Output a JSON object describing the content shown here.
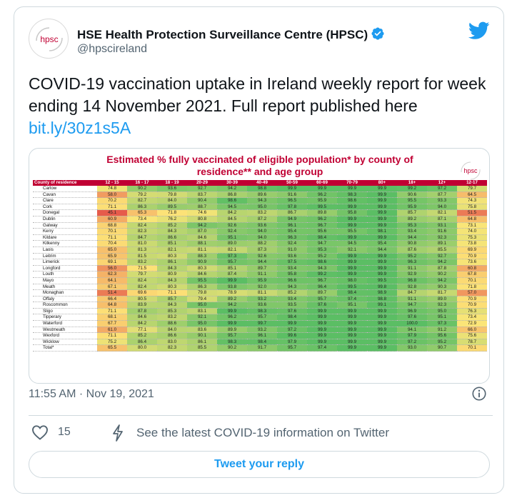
{
  "tweet": {
    "author_name": "HSE Health Protection Surveillance Centre (HPSC)",
    "handle": "@hpscireland",
    "avatar_text": "hpsc",
    "text_before_link": "COVID-19 vaccination uptake in Ireland weekly report for week ending 14 November 2021. Full report published here ",
    "link_text": "bit.ly/30z1s5A",
    "timestamp": "11:55 AM · Nov 19, 2021",
    "like_count": "15",
    "covid_info_link": "See the latest COVID-19 information on Twitter",
    "reply_button": "Tweet your reply"
  },
  "icons": {
    "verified": "verified-badge-icon",
    "brand": "twitter-bird-icon",
    "info": "info-icon",
    "like": "heart-icon",
    "covid": "lightning-icon"
  },
  "colors": {
    "accent": "#1d9bf0",
    "title_red": "#c00033"
  },
  "media": {
    "title": "Estimated % fully vaccinated of eligible population* by county of residence** and age group",
    "logo_text": "hpsc",
    "columns": [
      "County of residence",
      "12 - 15",
      "16 - 17",
      "18 - 19",
      "20-29",
      "30-39",
      "40-49",
      "50-59",
      "60-69",
      "70-79",
      "80+",
      "18+",
      "12+",
      "12-17"
    ],
    "rows": [
      [
        "Carlow",
        "74.8",
        "90.2",
        "93.6",
        "92.7",
        "94.2",
        "98.8",
        "99.9",
        "99.9",
        "99.9",
        "99.9",
        "99.2",
        "97.2",
        "79.7"
      ],
      [
        "Cavan",
        "58.0",
        "79.2",
        "79.8",
        "83.7",
        "86.8",
        "89.6",
        "91.6",
        "96.2",
        "98.3",
        "99.9",
        "90.6",
        "87.7",
        "64.5"
      ],
      [
        "Clare",
        "70.2",
        "82.7",
        "84.0",
        "90.4",
        "98.6",
        "94.3",
        "96.5",
        "95.9",
        "98.6",
        "99.9",
        "95.5",
        "93.3",
        "74.3"
      ],
      [
        "Cork",
        "71.1",
        "86.3",
        "89.5",
        "88.7",
        "94.5",
        "95.0",
        "97.8",
        "99.5",
        "99.9",
        "99.9",
        "95.9",
        "94.0",
        "75.8"
      ],
      [
        "Donegal",
        "45.1",
        "65.3",
        "71.8",
        "74.6",
        "84.2",
        "83.2",
        "86.7",
        "89.8",
        "95.8",
        "99.9",
        "85.7",
        "82.1",
        "51.5"
      ],
      [
        "Dublin",
        "60.9",
        "73.4",
        "76.2",
        "80.8",
        "84.5",
        "87.2",
        "94.9",
        "96.2",
        "99.9",
        "99.9",
        "89.2",
        "87.1",
        "64.8"
      ],
      [
        "Galway",
        "68.8",
        "82.4",
        "85.2",
        "94.2",
        "92.6",
        "93.6",
        "96.1",
        "96.7",
        "99.9",
        "99.9",
        "95.3",
        "93.1",
        "73.1"
      ],
      [
        "Kerry",
        "70.1",
        "82.3",
        "84.3",
        "87.0",
        "92.4",
        "94.0",
        "95.4",
        "95.6",
        "95.5",
        "98.1",
        "93.4",
        "91.6",
        "74.0"
      ],
      [
        "Kildare",
        "71.1",
        "84.7",
        "86.6",
        "84.6",
        "95.1",
        "94.0",
        "96.3",
        "98.4",
        "99.9",
        "99.9",
        "94.4",
        "92.3",
        "75.3"
      ],
      [
        "Kilkenny",
        "70.4",
        "81.0",
        "85.1",
        "88.1",
        "89.0",
        "88.2",
        "92.4",
        "94.7",
        "94.5",
        "95.4",
        "90.8",
        "89.1",
        "73.8"
      ],
      [
        "Laois",
        "65.0",
        "81.3",
        "82.1",
        "81.1",
        "82.1",
        "87.3",
        "91.0",
        "95.3",
        "92.1",
        "94.4",
        "87.6",
        "85.5",
        "69.9"
      ],
      [
        "Leitrim",
        "65.9",
        "81.5",
        "80.3",
        "88.3",
        "97.3",
        "92.6",
        "93.6",
        "95.2",
        "99.9",
        "99.9",
        "95.2",
        "92.7",
        "70.9"
      ],
      [
        "Limerick",
        "69.1",
        "83.2",
        "86.1",
        "90.9",
        "95.7",
        "94.4",
        "97.5",
        "98.6",
        "99.9",
        "99.9",
        "96.3",
        "94.2",
        "73.6"
      ],
      [
        "Longford",
        "56.0",
        "71.5",
        "84.3",
        "80.3",
        "85.1",
        "89.7",
        "93.4",
        "94.3",
        "99.9",
        "99.9",
        "91.1",
        "87.8",
        "60.8"
      ],
      [
        "Louth",
        "62.3",
        "79.7",
        "80.9",
        "84.6",
        "87.4",
        "91.1",
        "95.8",
        "99.2",
        "99.9",
        "99.9",
        "92.9",
        "90.2",
        "67.8"
      ],
      [
        "Mayo",
        "64.1",
        "82.4",
        "84.3",
        "95.5",
        "99.9",
        "95.9",
        "96.6",
        "96.7",
        "98.0",
        "99.5",
        "96.8",
        "94.2",
        "70.1"
      ],
      [
        "Meath",
        "67.1",
        "82.4",
        "80.3",
        "86.3",
        "93.8",
        "92.0",
        "94.3",
        "96.4",
        "99.5",
        "99.8",
        "92.8",
        "90.3",
        "71.8"
      ],
      [
        "Monaghan",
        "51.4",
        "69.6",
        "71.1",
        "79.8",
        "78.9",
        "81.1",
        "85.2",
        "89.7",
        "98.4",
        "98.9",
        "84.7",
        "81.7",
        "57.0"
      ],
      [
        "Offaly",
        "66.4",
        "80.5",
        "85.7",
        "79.4",
        "89.2",
        "93.2",
        "93.4",
        "95.7",
        "97.4",
        "98.8",
        "91.1",
        "89.0",
        "70.9"
      ],
      [
        "Roscommon",
        "64.8",
        "83.9",
        "84.3",
        "95.0",
        "94.2",
        "93.6",
        "93.5",
        "97.6",
        "95.1",
        "99.1",
        "94.7",
        "92.3",
        "70.9"
      ],
      [
        "Sligo",
        "71.1",
        "87.8",
        "85.3",
        "83.1",
        "99.9",
        "98.3",
        "97.6",
        "99.9",
        "99.9",
        "99.9",
        "96.9",
        "95.0",
        "76.3"
      ],
      [
        "Tipperary",
        "68.1",
        "84.6",
        "83.2",
        "92.1",
        "96.2",
        "95.7",
        "98.4",
        "99.9",
        "99.9",
        "99.9",
        "97.6",
        "95.1",
        "73.4"
      ],
      [
        "Waterford",
        "67.7",
        "84.2",
        "88.6",
        "95.0",
        "99.9",
        "99.7",
        "99.9",
        "99.9",
        "99.9",
        "99.9",
        "100.0",
        "97.3",
        "72.9"
      ],
      [
        "Westmeath",
        "61.0",
        "77.1",
        "84.0",
        "83.6",
        "89.9",
        "93.2",
        "97.2",
        "99.9",
        "99.9",
        "99.9",
        "94.1",
        "91.2",
        "66.0"
      ],
      [
        "Wexford",
        "71.1",
        "85.2",
        "86.6",
        "90.1",
        "95.7",
        "96.1",
        "99.6",
        "99.9",
        "99.9",
        "99.9",
        "97.9",
        "95.6",
        "75.6"
      ],
      [
        "Wicklow",
        "75.2",
        "86.4",
        "83.0",
        "86.1",
        "98.3",
        "98.4",
        "97.9",
        "99.9",
        "99.9",
        "99.9",
        "97.2",
        "95.2",
        "78.7"
      ],
      [
        "Total*",
        "65.5",
        "80.0",
        "82.3",
        "85.5",
        "90.2",
        "91.7",
        "95.7",
        "97.4",
        "99.9",
        "99.9",
        "93.0",
        "90.7",
        "70.1"
      ]
    ]
  },
  "chart_data": {
    "type": "heatmap",
    "title": "Estimated % fully vaccinated of eligible population* by county of residence** and age group",
    "x": [
      "12 - 15",
      "16 - 17",
      "18 - 19",
      "20-29",
      "30-39",
      "40-49",
      "50-59",
      "60-69",
      "70-79",
      "80+",
      "18+",
      "12+",
      "12-17"
    ],
    "y": [
      "Carlow",
      "Cavan",
      "Clare",
      "Cork",
      "Donegal",
      "Dublin",
      "Galway",
      "Kerry",
      "Kildare",
      "Kilkenny",
      "Laois",
      "Leitrim",
      "Limerick",
      "Longford",
      "Louth",
      "Mayo",
      "Meath",
      "Monaghan",
      "Offaly",
      "Roscommon",
      "Sligo",
      "Tipperary",
      "Waterford",
      "Westmeath",
      "Wexford",
      "Wicklow",
      "Total*"
    ],
    "color_scale": "red-yellow-green",
    "value_range": [
      45,
      100
    ]
  }
}
